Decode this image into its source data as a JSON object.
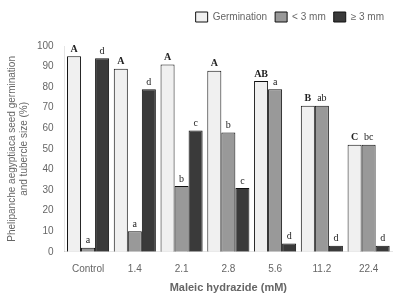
{
  "chart_data": {
    "type": "bar",
    "xlabel": "Maleic hydrazide (mM)",
    "ylabel": "Phelipanche aegyptiaca seed germination\nand tubercle size (%)",
    "categories": [
      "Control",
      "1.4",
      "2.1",
      "2.8",
      "5.6",
      "11.2",
      "22.4"
    ],
    "series": [
      {
        "name": "Germination",
        "color": "#f0f0f0",
        "values": [
          95,
          89,
          91,
          88,
          83,
          71,
          52
        ],
        "value_labels": [
          "A",
          "A",
          "A",
          "A",
          "AB",
          "B",
          "C"
        ]
      },
      {
        "name": "< 3 mm",
        "color": "#999999",
        "values": [
          2,
          10,
          32,
          58,
          79,
          71,
          52
        ],
        "value_labels": [
          "a",
          "a",
          "b",
          "b",
          "a",
          "ab",
          "bc"
        ]
      },
      {
        "name": "≥ 3 mm",
        "color": "#3a3a3a",
        "values": [
          94,
          79,
          59,
          31,
          4,
          3,
          3
        ],
        "value_labels": [
          "d",
          "d",
          "c",
          "c",
          "d",
          "d",
          "d"
        ]
      }
    ],
    "ylim": [
      0,
      100
    ],
    "yticks": [
      0,
      10,
      20,
      30,
      40,
      50,
      60,
      70,
      80,
      90,
      100
    ],
    "grid": false,
    "legend": "upper right"
  }
}
